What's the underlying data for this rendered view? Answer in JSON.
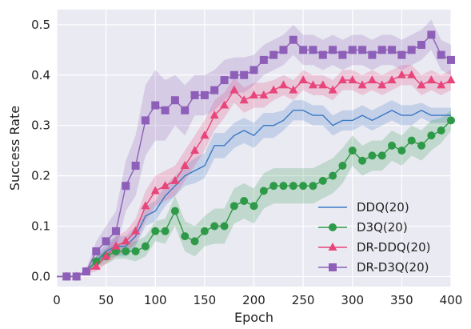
{
  "chart_data": {
    "type": "line",
    "title": "",
    "xlabel": "Epoch",
    "ylabel": "Success Rate",
    "xlim": [
      0,
      400
    ],
    "ylim": [
      -0.02,
      0.53
    ],
    "x_ticks": [
      0,
      50,
      100,
      150,
      200,
      250,
      300,
      350,
      400
    ],
    "y_ticks": [
      0.0,
      0.1,
      0.2,
      0.3,
      0.4,
      0.5
    ],
    "x_tick_labels": [
      "0",
      "50",
      "100",
      "150",
      "200",
      "250",
      "300",
      "350",
      "400"
    ],
    "y_tick_labels": [
      "0.0",
      "0.1",
      "0.2",
      "0.3",
      "0.4",
      "0.5"
    ],
    "grid": true,
    "background": "#eaeaf2",
    "legend_position": "lower-right",
    "series": [
      {
        "name": "DDQ(20)",
        "color": "#3a78c3",
        "marker": "none",
        "x": [
          0,
          10,
          20,
          30,
          40,
          50,
          60,
          70,
          80,
          90,
          100,
          110,
          120,
          130,
          140,
          150,
          160,
          170,
          180,
          190,
          200,
          210,
          220,
          230,
          240,
          250,
          260,
          270,
          280,
          290,
          300,
          310,
          320,
          330,
          340,
          350,
          360,
          370,
          380,
          390,
          400
        ],
        "y": [
          0.0,
          0.0,
          0.0,
          0.01,
          0.03,
          0.05,
          0.06,
          0.06,
          0.08,
          0.12,
          0.13,
          0.16,
          0.18,
          0.2,
          0.21,
          0.22,
          0.26,
          0.26,
          0.28,
          0.29,
          0.28,
          0.3,
          0.3,
          0.31,
          0.33,
          0.33,
          0.32,
          0.32,
          0.3,
          0.31,
          0.31,
          0.32,
          0.31,
          0.32,
          0.33,
          0.32,
          0.32,
          0.33,
          0.32,
          0.32,
          0.32
        ],
        "band": [
          0.0,
          0.0,
          0.0,
          0.005,
          0.01,
          0.015,
          0.02,
          0.02,
          0.02,
          0.02,
          0.02,
          0.02,
          0.02,
          0.02,
          0.025,
          0.025,
          0.025,
          0.025,
          0.025,
          0.025,
          0.025,
          0.025,
          0.025,
          0.02,
          0.02,
          0.02,
          0.02,
          0.02,
          0.02,
          0.02,
          0.02,
          0.02,
          0.02,
          0.02,
          0.02,
          0.02,
          0.02,
          0.015,
          0.015,
          0.015,
          0.015
        ]
      },
      {
        "name": "D3Q(20)",
        "color": "#2e9a48",
        "marker": "circle",
        "x": [
          0,
          10,
          20,
          30,
          40,
          50,
          60,
          70,
          80,
          90,
          100,
          110,
          120,
          130,
          140,
          150,
          160,
          170,
          180,
          190,
          200,
          210,
          220,
          230,
          240,
          250,
          260,
          270,
          280,
          290,
          300,
          310,
          320,
          330,
          340,
          350,
          360,
          370,
          380,
          390,
          400
        ],
        "y": [
          0.0,
          0.0,
          0.0,
          0.01,
          0.03,
          0.04,
          0.05,
          0.05,
          0.05,
          0.06,
          0.09,
          0.09,
          0.13,
          0.08,
          0.07,
          0.09,
          0.1,
          0.1,
          0.14,
          0.15,
          0.14,
          0.17,
          0.18,
          0.18,
          0.18,
          0.18,
          0.18,
          0.19,
          0.2,
          0.22,
          0.25,
          0.23,
          0.24,
          0.24,
          0.26,
          0.25,
          0.27,
          0.26,
          0.28,
          0.29,
          0.31
        ],
        "band": [
          0.0,
          0.0,
          0.0,
          0.005,
          0.01,
          0.015,
          0.015,
          0.015,
          0.02,
          0.02,
          0.02,
          0.025,
          0.03,
          0.03,
          0.03,
          0.03,
          0.035,
          0.035,
          0.035,
          0.035,
          0.035,
          0.035,
          0.035,
          0.035,
          0.035,
          0.035,
          0.035,
          0.035,
          0.035,
          0.035,
          0.03,
          0.03,
          0.03,
          0.03,
          0.03,
          0.03,
          0.03,
          0.03,
          0.03,
          0.025,
          0.02
        ]
      },
      {
        "name": "DR-DDQ(20)",
        "color": "#e8457a",
        "marker": "triangle",
        "x": [
          0,
          10,
          20,
          30,
          40,
          50,
          60,
          70,
          80,
          90,
          100,
          110,
          120,
          130,
          140,
          150,
          160,
          170,
          180,
          190,
          200,
          210,
          220,
          230,
          240,
          250,
          260,
          270,
          280,
          290,
          300,
          310,
          320,
          330,
          340,
          350,
          360,
          370,
          380,
          390,
          400
        ],
        "y": [
          0.0,
          0.0,
          0.0,
          0.01,
          0.02,
          0.04,
          0.06,
          0.07,
          0.09,
          0.14,
          0.17,
          0.18,
          0.19,
          0.22,
          0.25,
          0.28,
          0.32,
          0.34,
          0.37,
          0.35,
          0.36,
          0.36,
          0.37,
          0.38,
          0.37,
          0.39,
          0.38,
          0.38,
          0.37,
          0.39,
          0.39,
          0.38,
          0.39,
          0.38,
          0.39,
          0.4,
          0.4,
          0.38,
          0.39,
          0.38,
          0.39
        ],
        "band": [
          0.0,
          0.0,
          0.0,
          0.005,
          0.01,
          0.015,
          0.02,
          0.02,
          0.025,
          0.03,
          0.03,
          0.03,
          0.03,
          0.03,
          0.03,
          0.03,
          0.03,
          0.025,
          0.025,
          0.025,
          0.025,
          0.025,
          0.02,
          0.02,
          0.02,
          0.02,
          0.02,
          0.02,
          0.02,
          0.02,
          0.02,
          0.02,
          0.02,
          0.02,
          0.02,
          0.02,
          0.02,
          0.02,
          0.02,
          0.02,
          0.02
        ]
      },
      {
        "name": "DR-D3Q(20)",
        "color": "#8e5fb8",
        "marker": "square",
        "x": [
          0,
          10,
          20,
          30,
          40,
          50,
          60,
          70,
          80,
          90,
          100,
          110,
          120,
          130,
          140,
          150,
          160,
          170,
          180,
          190,
          200,
          210,
          220,
          230,
          240,
          250,
          260,
          270,
          280,
          290,
          300,
          310,
          320,
          330,
          340,
          350,
          360,
          370,
          380,
          390,
          400
        ],
        "y": [
          0.0,
          0.0,
          0.0,
          0.01,
          0.05,
          0.07,
          0.09,
          0.18,
          0.22,
          0.31,
          0.34,
          0.33,
          0.35,
          0.33,
          0.36,
          0.36,
          0.37,
          0.39,
          0.4,
          0.4,
          0.41,
          0.43,
          0.44,
          0.45,
          0.47,
          0.45,
          0.45,
          0.44,
          0.45,
          0.44,
          0.45,
          0.45,
          0.44,
          0.45,
          0.45,
          0.44,
          0.45,
          0.46,
          0.48,
          0.44,
          0.43
        ],
        "band": [
          0.0,
          0.0,
          0.0,
          0.005,
          0.02,
          0.03,
          0.04,
          0.05,
          0.06,
          0.07,
          0.07,
          0.06,
          0.05,
          0.05,
          0.04,
          0.04,
          0.04,
          0.04,
          0.035,
          0.035,
          0.03,
          0.03,
          0.03,
          0.03,
          0.03,
          0.03,
          0.03,
          0.03,
          0.03,
          0.03,
          0.03,
          0.03,
          0.03,
          0.03,
          0.03,
          0.03,
          0.03,
          0.03,
          0.03,
          0.03,
          0.03
        ]
      }
    ]
  }
}
